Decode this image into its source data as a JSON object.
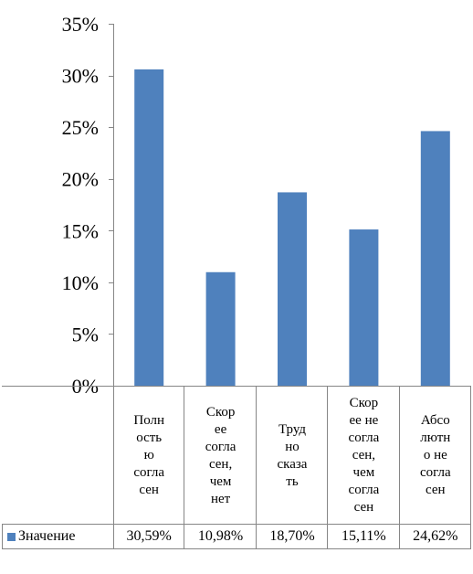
{
  "chart_data": {
    "type": "bar",
    "categories": [
      "Полн\nость\nю\nсогла\nсен",
      "Скор\nее\nсогла\nсен,\nчем\nнет",
      "Труд\nно\nсказа\nть",
      "Скор\nее не\nсогла\nсен,\nчем\nсогла\nсен",
      "Абсо\nлютн\nо не\nсогла\nсен"
    ],
    "series": [
      {
        "name": "Значение",
        "values": [
          30.59,
          10.98,
          18.7,
          15.11,
          24.62
        ],
        "labels": [
          "30,59%",
          "10,98%",
          "18,70%",
          "15,11%",
          "24,62%"
        ],
        "color": "#4F81BD"
      }
    ],
    "y_ticks": [
      "0%",
      "5%",
      "10%",
      "15%",
      "20%",
      "25%",
      "30%",
      "35%"
    ],
    "ylim": [
      0,
      35
    ],
    "grid": false,
    "legend": "data-table-left",
    "data_table": true
  }
}
